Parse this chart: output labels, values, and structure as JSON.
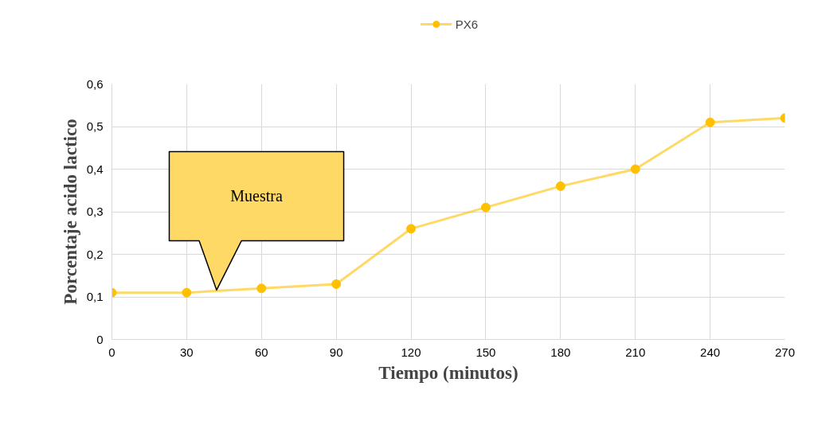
{
  "chart_data": {
    "type": "line",
    "xlabel": "Tiempo (minutos)",
    "ylabel": "Porcentaje acido lactico",
    "x": [
      0,
      30,
      60,
      90,
      120,
      150,
      180,
      210,
      240,
      270
    ],
    "series": [
      {
        "name": "PX6",
        "color": "#ffc000",
        "values": [
          0.11,
          0.11,
          0.12,
          0.13,
          0.26,
          0.31,
          0.36,
          0.4,
          0.51,
          0.52
        ]
      }
    ],
    "xlim": [
      0,
      270
    ],
    "xticks": [
      0,
      30,
      60,
      90,
      120,
      150,
      180,
      210,
      240,
      270
    ],
    "ylim": [
      0,
      0.6
    ],
    "yticks": [
      0,
      {
        "value": 0.1,
        "label": "0,1"
      },
      {
        "value": 0.2,
        "label": "0,2"
      },
      {
        "value": 0.3,
        "label": "0,3"
      },
      {
        "value": 0.4,
        "label": "0,4"
      },
      {
        "value": 0.5,
        "label": "0,5"
      },
      {
        "value": 0.6,
        "label": "0,6"
      }
    ],
    "annotations": [
      "Muestra"
    ],
    "grid": true,
    "legend": "top",
    "marker": "circle",
    "line_style": "solid"
  }
}
